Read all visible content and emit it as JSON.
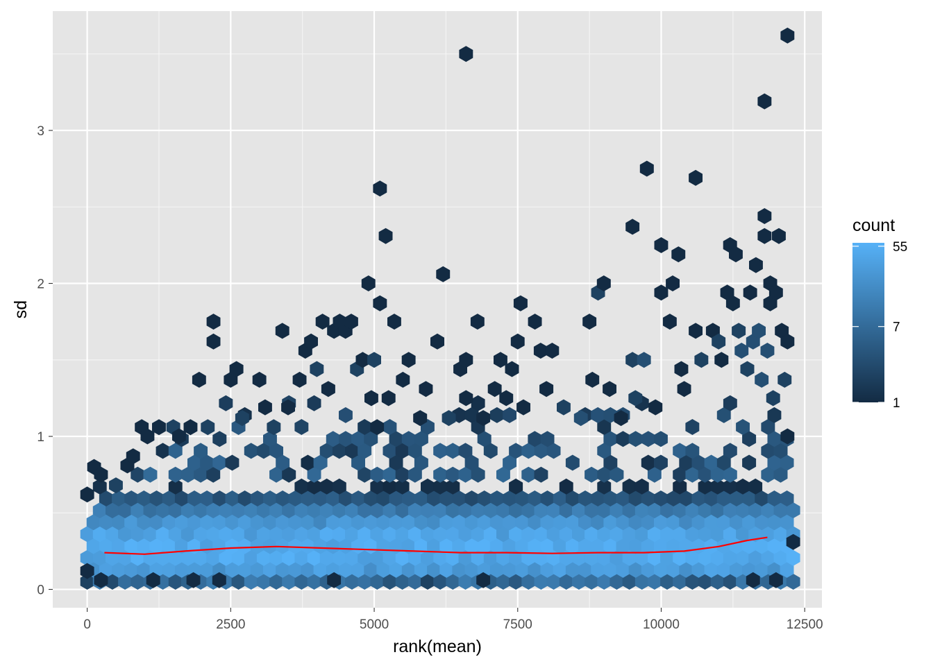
{
  "chart_data": {
    "type": "hexbin",
    "xlabel": "rank(mean)",
    "ylabel": "sd",
    "xlim": [
      -600,
      12800
    ],
    "ylim": [
      -0.12,
      3.78
    ],
    "x_ticks": [
      {
        "value": 0,
        "label": "0"
      },
      {
        "value": 2500,
        "label": "2500"
      },
      {
        "value": 5000,
        "label": "5000"
      },
      {
        "value": 7500,
        "label": "7500"
      },
      {
        "value": 10000,
        "label": "10000"
      },
      {
        "value": 12500,
        "label": "12500"
      }
    ],
    "y_ticks": [
      {
        "value": 0,
        "label": "0"
      },
      {
        "value": 1,
        "label": "1"
      },
      {
        "value": 2,
        "label": "2"
      },
      {
        "value": 3,
        "label": "3"
      }
    ],
    "grid": true,
    "background": "#e5e5e5",
    "legend": {
      "title": "count",
      "position": "right",
      "scale": "log",
      "min": 1,
      "max": 60,
      "ticks": [
        {
          "value": 55,
          "label": "55"
        },
        {
          "value": 7,
          "label": "7"
        },
        {
          "value": 1,
          "label": "1"
        }
      ],
      "low_color": "#132b43",
      "high_color": "#56b1f7"
    },
    "bins": {
      "x_range": [
        0,
        12300
      ],
      "y_range": [
        0.05,
        0.75
      ],
      "columns": 56,
      "rows": 9
    },
    "outliers": [
      [
        0,
        0.12,
        1
      ],
      [
        240,
        0.06,
        1
      ],
      [
        1150,
        0.06,
        1
      ],
      [
        1850,
        0.06,
        1
      ],
      [
        2300,
        0.06,
        1
      ],
      [
        4300,
        0.06,
        1
      ],
      [
        6900,
        0.06,
        1
      ],
      [
        11600,
        0.06,
        1
      ],
      [
        12000,
        0.06,
        1
      ],
      [
        12300,
        0.31,
        1
      ],
      [
        0,
        0.62,
        1
      ],
      [
        120,
        0.8,
        1
      ],
      [
        240,
        0.75,
        1
      ],
      [
        500,
        0.68,
        2
      ],
      [
        700,
        0.81,
        1
      ],
      [
        800,
        0.87,
        1
      ],
      [
        950,
        1.06,
        1
      ],
      [
        1050,
        1.0,
        1
      ],
      [
        1250,
        1.06,
        1
      ],
      [
        1500,
        1.06,
        2
      ],
      [
        1600,
        1.0,
        1
      ],
      [
        1800,
        1.06,
        1
      ],
      [
        1950,
        1.37,
        1
      ],
      [
        2100,
        1.06,
        2
      ],
      [
        2200,
        1.62,
        1
      ],
      [
        2200,
        1.75,
        1
      ],
      [
        2500,
        1.37,
        1
      ],
      [
        2600,
        1.44,
        1
      ],
      [
        2700,
        1.12,
        2
      ],
      [
        3000,
        1.37,
        1
      ],
      [
        3100,
        1.19,
        1
      ],
      [
        3250,
        1.06,
        2
      ],
      [
        3400,
        1.69,
        1
      ],
      [
        3500,
        1.19,
        1
      ],
      [
        3700,
        1.37,
        1
      ],
      [
        3800,
        1.56,
        1
      ],
      [
        3900,
        1.62,
        1
      ],
      [
        4000,
        1.44,
        2
      ],
      [
        4100,
        1.75,
        1
      ],
      [
        4200,
        1.31,
        1
      ],
      [
        4300,
        1.69,
        1
      ],
      [
        4400,
        1.75,
        1
      ],
      [
        4500,
        1.69,
        1
      ],
      [
        4600,
        1.75,
        1
      ],
      [
        4700,
        1.44,
        2
      ],
      [
        4800,
        1.5,
        1
      ],
      [
        4900,
        2.0,
        1
      ],
      [
        4950,
        1.25,
        1
      ],
      [
        5000,
        1.5,
        2
      ],
      [
        5050,
        1.06,
        1
      ],
      [
        5100,
        1.87,
        1
      ],
      [
        5100,
        2.62,
        1
      ],
      [
        5200,
        2.31,
        1
      ],
      [
        5250,
        1.25,
        1
      ],
      [
        5350,
        1.75,
        1
      ],
      [
        5500,
        1.37,
        1
      ],
      [
        5600,
        1.5,
        1
      ],
      [
        5800,
        1.12,
        1
      ],
      [
        5900,
        1.31,
        1
      ],
      [
        6100,
        1.62,
        1
      ],
      [
        6200,
        2.06,
        1
      ],
      [
        6300,
        1.12,
        2
      ],
      [
        6500,
        1.44,
        1
      ],
      [
        6600,
        1.25,
        1
      ],
      [
        6600,
        1.5,
        1
      ],
      [
        6600,
        3.5,
        1
      ],
      [
        6800,
        1.75,
        1
      ],
      [
        6900,
        1.12,
        1
      ],
      [
        7100,
        1.31,
        1
      ],
      [
        7200,
        1.5,
        1
      ],
      [
        7300,
        1.25,
        1
      ],
      [
        7400,
        1.44,
        1
      ],
      [
        7550,
        1.87,
        1
      ],
      [
        7500,
        1.62,
        1
      ],
      [
        7600,
        1.19,
        1
      ],
      [
        7800,
        1.75,
        1
      ],
      [
        7900,
        1.56,
        1
      ],
      [
        8000,
        1.31,
        1
      ],
      [
        8100,
        1.56,
        1
      ],
      [
        8300,
        1.19,
        2
      ],
      [
        8600,
        1.12,
        3
      ],
      [
        8800,
        1.37,
        1
      ],
      [
        8750,
        1.75,
        1
      ],
      [
        8900,
        1.94,
        2
      ],
      [
        9000,
        2.0,
        1
      ],
      [
        9100,
        1.31,
        1
      ],
      [
        9300,
        1.12,
        1
      ],
      [
        9500,
        2.37,
        1
      ],
      [
        9500,
        1.5,
        2
      ],
      [
        9550,
        1.25,
        2
      ],
      [
        9700,
        1.5,
        3
      ],
      [
        9750,
        2.75,
        1
      ],
      [
        9900,
        1.19,
        1
      ],
      [
        10000,
        2.25,
        1
      ],
      [
        10000,
        1.94,
        1
      ],
      [
        10150,
        1.75,
        1
      ],
      [
        10200,
        2.0,
        1
      ],
      [
        10300,
        2.19,
        1
      ],
      [
        10350,
        1.44,
        1
      ],
      [
        10400,
        1.31,
        1
      ],
      [
        10600,
        2.69,
        1
      ],
      [
        10600,
        1.69,
        1
      ],
      [
        10700,
        1.5,
        2
      ],
      [
        10900,
        1.69,
        1
      ],
      [
        11000,
        1.62,
        2
      ],
      [
        11050,
        1.5,
        1
      ],
      [
        11150,
        1.94,
        1
      ],
      [
        11200,
        2.25,
        1
      ],
      [
        11250,
        1.87,
        1
      ],
      [
        11300,
        2.19,
        1
      ],
      [
        11350,
        1.69,
        2
      ],
      [
        11400,
        1.56,
        3
      ],
      [
        11500,
        1.44,
        2
      ],
      [
        11550,
        1.94,
        1
      ],
      [
        11600,
        1.62,
        3
      ],
      [
        11650,
        2.12,
        1
      ],
      [
        11700,
        1.69,
        3
      ],
      [
        11750,
        1.37,
        3
      ],
      [
        11800,
        2.44,
        1
      ],
      [
        11800,
        2.31,
        1
      ],
      [
        11800,
        3.19,
        1
      ],
      [
        11850,
        1.56,
        3
      ],
      [
        11900,
        1.87,
        1
      ],
      [
        11900,
        2.0,
        1
      ],
      [
        11950,
        1.25,
        2
      ],
      [
        12000,
        1.94,
        1
      ],
      [
        12050,
        2.31,
        1
      ],
      [
        12100,
        1.69,
        1
      ],
      [
        12150,
        1.37,
        2
      ],
      [
        12200,
        1.62,
        1
      ],
      [
        12200,
        1.0,
        1
      ],
      [
        12200,
        3.62,
        1
      ]
    ],
    "trend_line": {
      "color": "#ff0000",
      "x": [
        300,
        1000,
        1700,
        2500,
        3300,
        4100,
        4900,
        5700,
        6500,
        7300,
        8100,
        8900,
        9700,
        10400,
        11000,
        11500,
        11850
      ],
      "y": [
        0.24,
        0.23,
        0.25,
        0.27,
        0.28,
        0.27,
        0.26,
        0.25,
        0.24,
        0.24,
        0.235,
        0.24,
        0.24,
        0.25,
        0.28,
        0.32,
        0.34
      ]
    }
  }
}
